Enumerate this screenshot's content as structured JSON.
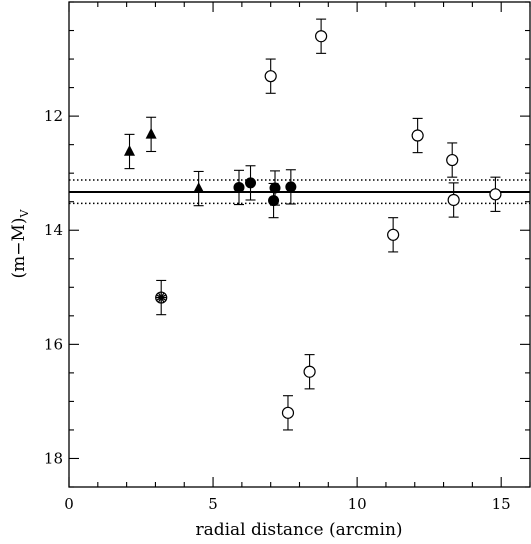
{
  "chart_data": {
    "type": "scatter",
    "title": "",
    "xlabel": "radial distance (arcmin)",
    "ylabel_main": "(m−M)",
    "ylabel_sub": "V",
    "xlim": [
      0,
      16
    ],
    "ylim": [
      18.5,
      10.0
    ],
    "y_inverted": true,
    "x_major_ticks": [
      0,
      5,
      10,
      15
    ],
    "x_minor_step": 1,
    "y_major_ticks": [
      12,
      14,
      16,
      18
    ],
    "y_minor_step": 0.5,
    "x_tick_labels": [
      "0",
      "5",
      "10",
      "15"
    ],
    "y_tick_labels": [
      "12",
      "14",
      "16",
      "18"
    ],
    "grid": false,
    "legend": "none",
    "reference_lines": [
      {
        "name": "mean",
        "y": 13.33,
        "style": "solid"
      },
      {
        "name": "upper-bound",
        "y": 13.12,
        "style": "dotted"
      },
      {
        "name": "lower-bound",
        "y": 13.53,
        "style": "dotted"
      }
    ],
    "series": [
      {
        "marker": "filled-triangle",
        "points": [
          {
            "x": 2.1,
            "y": 12.62,
            "err": 0.3
          },
          {
            "x": 2.85,
            "y": 12.32,
            "err": 0.3
          },
          {
            "x": 4.5,
            "y": 13.27,
            "err": 0.3
          }
        ]
      },
      {
        "marker": "filled-circle",
        "points": [
          {
            "x": 5.9,
            "y": 13.25,
            "err": 0.3
          },
          {
            "x": 6.3,
            "y": 13.17,
            "err": 0.3
          },
          {
            "x": 7.15,
            "y": 13.26,
            "err": 0.3
          },
          {
            "x": 7.1,
            "y": 13.48,
            "err": 0.3
          },
          {
            "x": 7.7,
            "y": 13.24,
            "err": 0.3
          }
        ]
      },
      {
        "marker": "open-circle",
        "points": [
          {
            "x": 7.0,
            "y": 11.3,
            "err": 0.3
          },
          {
            "x": 8.75,
            "y": 10.6,
            "err": 0.3
          },
          {
            "x": 8.35,
            "y": 16.48,
            "err": 0.3
          },
          {
            "x": 7.6,
            "y": 17.2,
            "err": 0.3
          },
          {
            "x": 11.25,
            "y": 14.08,
            "err": 0.3
          },
          {
            "x": 12.1,
            "y": 12.34,
            "err": 0.3
          },
          {
            "x": 13.3,
            "y": 12.77,
            "err": 0.3
          },
          {
            "x": 13.35,
            "y": 13.47,
            "err": 0.3
          },
          {
            "x": 14.8,
            "y": 13.37,
            "err": 0.3
          }
        ]
      },
      {
        "marker": "starred-circle",
        "points": [
          {
            "x": 3.2,
            "y": 15.18,
            "err": 0.3
          }
        ]
      }
    ]
  }
}
